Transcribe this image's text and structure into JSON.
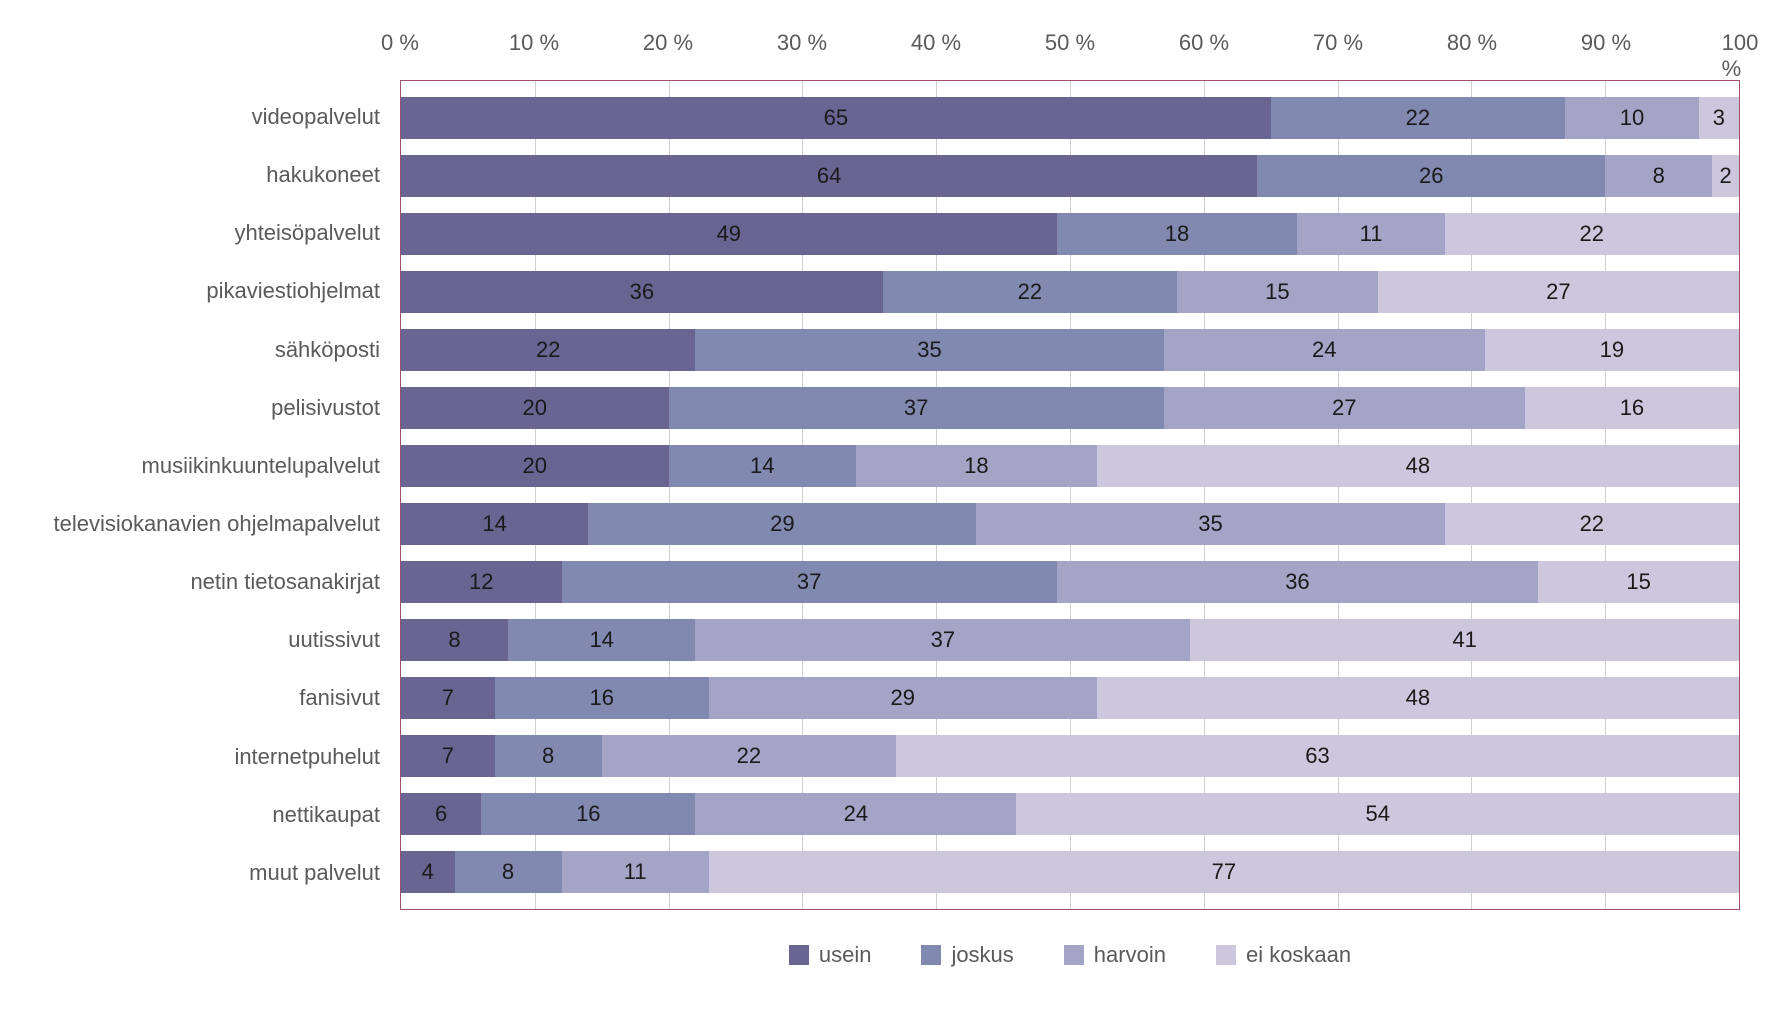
{
  "chart": {
    "type": "stacked-bar-horizontal",
    "xlim": [
      0,
      100
    ],
    "xtick_step": 10,
    "xtick_format": "{v} %",
    "plot_border_color": "#a05070",
    "grid_color": "#d0d0d0",
    "background_color": "#ffffff",
    "label_fontsize": 22,
    "label_color": "#5a5a5a",
    "value_fontsize": 22,
    "value_color": "#1a1a1a",
    "series": [
      {
        "key": "usein",
        "label": "usein",
        "color": "#6a6492"
      },
      {
        "key": "joskus",
        "label": "joskus",
        "color": "#8289b1"
      },
      {
        "key": "harvoin",
        "label": "harvoin",
        "color": "#a3a4c6"
      },
      {
        "key": "ei_koskaan",
        "label": "ei koskaan",
        "color": "#cdc7de"
      }
    ],
    "categories": [
      {
        "label": "videopalvelut",
        "values": [
          65,
          22,
          10,
          3
        ]
      },
      {
        "label": "hakukoneet",
        "values": [
          64,
          26,
          8,
          2
        ]
      },
      {
        "label": "yhteisöpalvelut",
        "values": [
          49,
          18,
          11,
          22
        ]
      },
      {
        "label": "pikaviestiohjelmat",
        "values": [
          36,
          22,
          15,
          27
        ]
      },
      {
        "label": "sähköposti",
        "values": [
          22,
          35,
          24,
          19
        ]
      },
      {
        "label": "pelisivustot",
        "values": [
          20,
          37,
          27,
          16
        ]
      },
      {
        "label": "musiikinkuuntelupalvelut",
        "values": [
          20,
          14,
          18,
          48
        ]
      },
      {
        "label": "televisiokanavien ohjelmapalvelut",
        "values": [
          14,
          29,
          35,
          22
        ]
      },
      {
        "label": "netin tietosanakirjat",
        "values": [
          12,
          37,
          36,
          15
        ]
      },
      {
        "label": "uutissivut",
        "values": [
          8,
          14,
          37,
          41
        ]
      },
      {
        "label": "fanisivut",
        "values": [
          7,
          16,
          29,
          48
        ]
      },
      {
        "label": "internetpuhelut",
        "values": [
          7,
          8,
          22,
          63
        ]
      },
      {
        "label": "nettikaupat",
        "values": [
          6,
          16,
          24,
          54
        ]
      },
      {
        "label": "muut palvelut",
        "values": [
          4,
          8,
          11,
          77
        ]
      }
    ]
  }
}
